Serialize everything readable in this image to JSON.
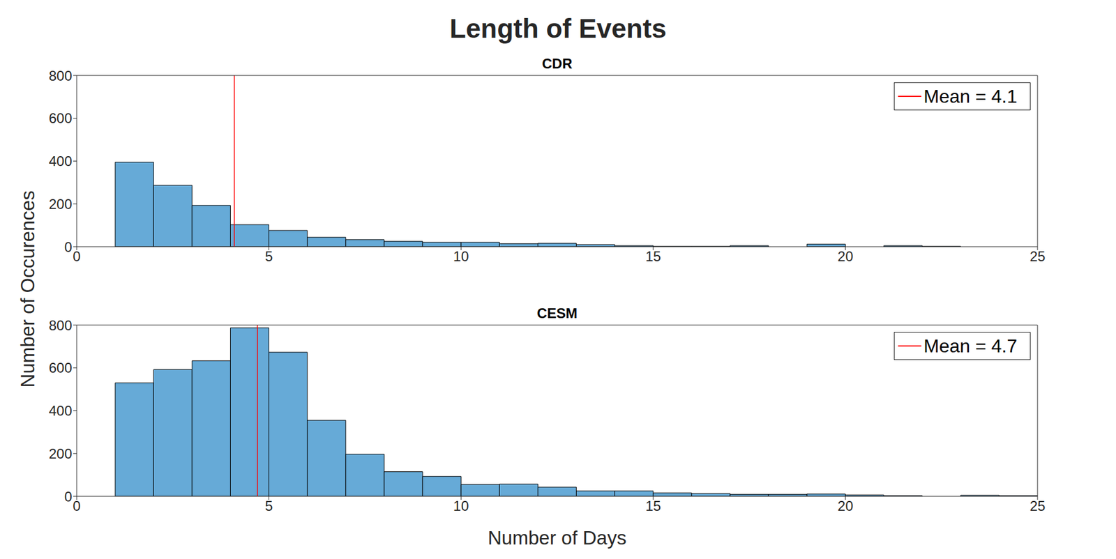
{
  "title": "Length of Events",
  "y_label": "Number of Occurences",
  "chart_data": [
    {
      "type": "histogram",
      "title": "CDR",
      "bins": [
        1,
        2,
        3,
        4,
        5,
        6,
        7,
        8,
        9,
        10,
        11,
        12,
        13,
        14,
        15,
        16,
        17,
        18,
        19,
        20,
        21,
        22,
        23,
        24,
        25
      ],
      "values": [
        395,
        287,
        193,
        103,
        76,
        44,
        33,
        25,
        21,
        21,
        14,
        16,
        10,
        5,
        2,
        2,
        5,
        0,
        12,
        0,
        5,
        2,
        0,
        0
      ],
      "color": "#66aad7",
      "xlim": [
        0,
        25
      ],
      "xticks": [
        0,
        5,
        10,
        15,
        20,
        25
      ],
      "ylim": [
        0,
        800
      ],
      "yticks": [
        0,
        200,
        400,
        600,
        800
      ],
      "mean": {
        "value": 4.1,
        "label": "Mean = 4.1",
        "color": "#ff0000"
      },
      "legend": "upper right"
    },
    {
      "type": "histogram",
      "title": "CESM",
      "x_label": "Number of Days",
      "bins": [
        1,
        2,
        3,
        4,
        5,
        6,
        7,
        8,
        9,
        10,
        11,
        12,
        13,
        14,
        15,
        16,
        17,
        18,
        19,
        20,
        21,
        22,
        23,
        24,
        25
      ],
      "values": [
        530,
        592,
        633,
        787,
        673,
        355,
        197,
        115,
        93,
        55,
        57,
        43,
        25,
        25,
        16,
        13,
        9,
        9,
        11,
        6,
        3,
        0,
        5,
        3
      ],
      "color": "#66aad7",
      "xlim": [
        0,
        25
      ],
      "xticks": [
        0,
        5,
        10,
        15,
        20,
        25
      ],
      "ylim": [
        0,
        800
      ],
      "yticks": [
        0,
        200,
        400,
        600,
        800
      ],
      "mean": {
        "value": 4.7,
        "label": "Mean = 4.7",
        "color": "#ff0000"
      },
      "legend": "upper right"
    }
  ]
}
